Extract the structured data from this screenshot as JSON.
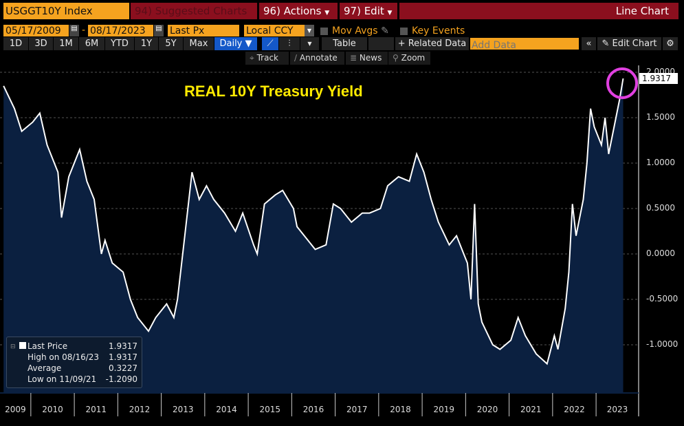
{
  "header": {
    "ticker": "USGGT10Y Index",
    "suggested": "94) Suggested Charts",
    "actions": "96) Actions",
    "edit": "97) Edit",
    "chart_type": "Line Chart"
  },
  "controls": {
    "start_date": "05/17/2009",
    "end_date": "08/17/2023",
    "field": "Last Px",
    "currency": "Local CCY",
    "mov_avgs": "Mov Avgs",
    "key_events": "Key Events"
  },
  "toolbar": {
    "ranges": [
      "1D",
      "3D",
      "1M",
      "6M",
      "YTD",
      "1Y",
      "5Y",
      "Max"
    ],
    "frequency": "Daily ▼",
    "table": "Table",
    "related": "+ Related Data",
    "add_data_placeholder": "Add Data",
    "collapse": "«",
    "edit_chart": "Edit Chart"
  },
  "tools": {
    "track": "Track",
    "annotate": "Annotate",
    "news": "News",
    "zoom": "Zoom"
  },
  "legend": {
    "rows": [
      {
        "label": "Last Price",
        "value": "1.9317"
      },
      {
        "label": "High on 08/16/23",
        "value": "1.9317"
      },
      {
        "label": "Average",
        "value": "0.3227"
      },
      {
        "label": "Low on 11/09/21",
        "value": "-1.2090"
      }
    ]
  },
  "colors": {
    "accent": "#f5a31f",
    "header": "#8b0f1e",
    "area": "#0b2040",
    "line": "#ffffff",
    "title": "#ffea00",
    "highlight": "#e040e0"
  },
  "chart_data": {
    "type": "area",
    "title": "REAL 10Y Treasury Yield",
    "last_value_label": "1.9317",
    "ylim": [
      -1.25,
      2.0
    ],
    "y_ticks": [
      "2.0000",
      "1.5000",
      "1.0000",
      "0.5000",
      "0.0000",
      "-0.5000",
      "-1.0000"
    ],
    "x_ticks": [
      "2009",
      "2010",
      "2011",
      "2012",
      "2013",
      "2014",
      "2015",
      "2016",
      "2017",
      "2018",
      "2019",
      "2020",
      "2021",
      "2022",
      "2023"
    ],
    "grid": true,
    "points": [
      [
        "2009-05",
        1.85
      ],
      [
        "2009-08",
        1.6
      ],
      [
        "2009-10",
        1.35
      ],
      [
        "2010-01",
        1.45
      ],
      [
        "2010-03",
        1.55
      ],
      [
        "2010-05",
        1.2
      ],
      [
        "2010-08",
        0.9
      ],
      [
        "2010-09",
        0.4
      ],
      [
        "2010-11",
        0.85
      ],
      [
        "2011-02",
        1.15
      ],
      [
        "2011-04",
        0.8
      ],
      [
        "2011-06",
        0.6
      ],
      [
        "2011-08",
        0.0
      ],
      [
        "2011-09",
        0.15
      ],
      [
        "2011-11",
        -0.1
      ],
      [
        "2012-02",
        -0.2
      ],
      [
        "2012-04",
        -0.5
      ],
      [
        "2012-06",
        -0.7
      ],
      [
        "2012-09",
        -0.85
      ],
      [
        "2012-11",
        -0.7
      ],
      [
        "2013-02",
        -0.55
      ],
      [
        "2013-04",
        -0.7
      ],
      [
        "2013-05",
        -0.5
      ],
      [
        "2013-07",
        0.2
      ],
      [
        "2013-09",
        0.9
      ],
      [
        "2013-11",
        0.6
      ],
      [
        "2014-01",
        0.75
      ],
      [
        "2014-03",
        0.6
      ],
      [
        "2014-06",
        0.45
      ],
      [
        "2014-09",
        0.25
      ],
      [
        "2014-11",
        0.45
      ],
      [
        "2015-02",
        0.1
      ],
      [
        "2015-03",
        0.0
      ],
      [
        "2015-05",
        0.55
      ],
      [
        "2015-08",
        0.65
      ],
      [
        "2015-10",
        0.7
      ],
      [
        "2016-01",
        0.5
      ],
      [
        "2016-02",
        0.3
      ],
      [
        "2016-05",
        0.15
      ],
      [
        "2016-07",
        0.05
      ],
      [
        "2016-10",
        0.1
      ],
      [
        "2016-12",
        0.55
      ],
      [
        "2017-02",
        0.5
      ],
      [
        "2017-05",
        0.35
      ],
      [
        "2017-08",
        0.45
      ],
      [
        "2017-10",
        0.45
      ],
      [
        "2018-01",
        0.5
      ],
      [
        "2018-03",
        0.75
      ],
      [
        "2018-06",
        0.85
      ],
      [
        "2018-09",
        0.8
      ],
      [
        "2018-11",
        1.1
      ],
      [
        "2019-01",
        0.9
      ],
      [
        "2019-03",
        0.6
      ],
      [
        "2019-05",
        0.35
      ],
      [
        "2019-08",
        0.1
      ],
      [
        "2019-10",
        0.2
      ],
      [
        "2019-12",
        0.0
      ],
      [
        "2020-01",
        -0.1
      ],
      [
        "2020-02",
        -0.5
      ],
      [
        "2020-03",
        0.55
      ],
      [
        "2020-04",
        -0.55
      ],
      [
        "2020-05",
        -0.75
      ],
      [
        "2020-08",
        -1.0
      ],
      [
        "2020-10",
        -1.05
      ],
      [
        "2021-01",
        -0.95
      ],
      [
        "2021-03",
        -0.7
      ],
      [
        "2021-05",
        -0.9
      ],
      [
        "2021-08",
        -1.1
      ],
      [
        "2021-11",
        -1.209
      ],
      [
        "2022-01",
        -0.9
      ],
      [
        "2022-02",
        -1.05
      ],
      [
        "2022-04",
        -0.6
      ],
      [
        "2022-05",
        -0.2
      ],
      [
        "2022-06",
        0.55
      ],
      [
        "2022-07",
        0.2
      ],
      [
        "2022-09",
        0.6
      ],
      [
        "2022-10",
        1.0
      ],
      [
        "2022-11",
        1.6
      ],
      [
        "2022-12",
        1.4
      ],
      [
        "2023-02",
        1.2
      ],
      [
        "2023-03",
        1.5
      ],
      [
        "2023-04",
        1.1
      ],
      [
        "2023-06",
        1.5
      ],
      [
        "2023-07",
        1.7
      ],
      [
        "2023-08",
        1.9317
      ]
    ]
  }
}
